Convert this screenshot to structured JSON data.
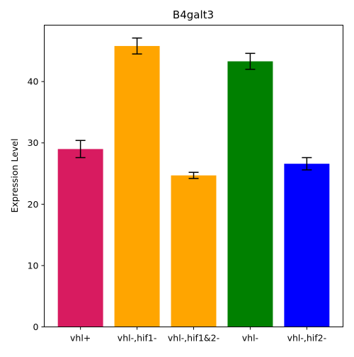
{
  "chart_data": {
    "type": "bar",
    "title": "B4galt3",
    "xlabel": "",
    "ylabel": "Expression Level",
    "categories": [
      "vhl+",
      "vhl-,hif1-",
      "vhl-,hif1&2-",
      "vhl-",
      "vhl-,hif2-"
    ],
    "values": [
      29.0,
      45.8,
      24.7,
      43.3,
      26.6
    ],
    "errors": [
      1.4,
      1.3,
      0.5,
      1.3,
      1.0
    ],
    "colors": [
      "#d81b60",
      "#ffa500",
      "#ffa500",
      "#008000",
      "#0000ff"
    ],
    "ylim": [
      0,
      49.2
    ],
    "yticks": [
      0,
      10,
      20,
      30,
      40
    ],
    "grid": false,
    "legend": "none"
  }
}
